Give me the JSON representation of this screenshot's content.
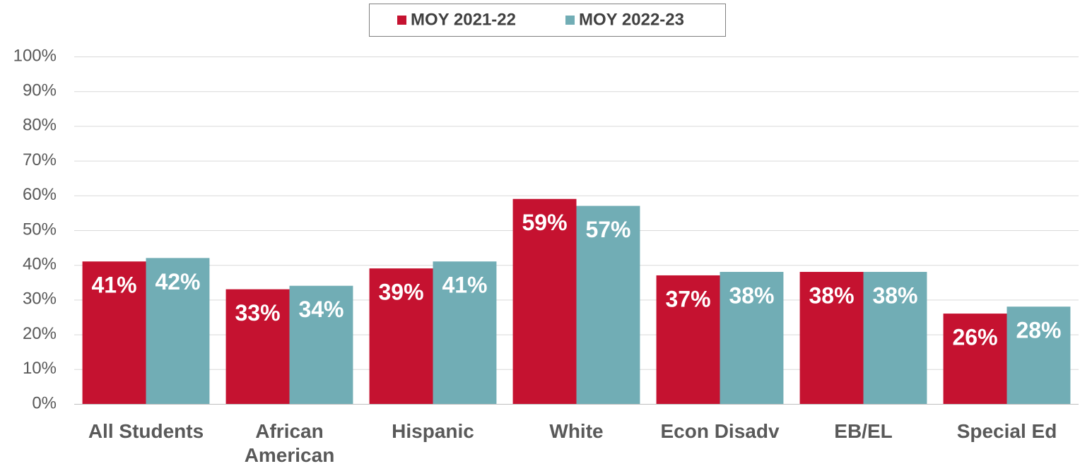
{
  "chart_data": {
    "type": "bar",
    "categories": [
      "All Students",
      "African American",
      "Hispanic",
      "White",
      "Econ Disadv",
      "EB/EL",
      "Special Ed"
    ],
    "series": [
      {
        "name": "MOY 2021-22",
        "color": "#c51230",
        "values": [
          41,
          33,
          39,
          59,
          37,
          38,
          26
        ],
        "value_labels": [
          "41%",
          "33%",
          "39%",
          "59%",
          "37%",
          "38%",
          "26%"
        ]
      },
      {
        "name": "MOY 2022-23",
        "color": "#71adb5",
        "values": [
          42,
          34,
          41,
          57,
          38,
          38,
          28
        ],
        "value_labels": [
          "42%",
          "34%",
          "41%",
          "57%",
          "38%",
          "38%",
          "28%"
        ]
      }
    ],
    "ylim": [
      0,
      100
    ],
    "yticks": [
      {
        "value": 0,
        "label": "0%"
      },
      {
        "value": 10,
        "label": "10%"
      },
      {
        "value": 20,
        "label": "20%"
      },
      {
        "value": 30,
        "label": "30%"
      },
      {
        "value": 40,
        "label": "40%"
      },
      {
        "value": 50,
        "label": "50%"
      },
      {
        "value": 60,
        "label": "60%"
      },
      {
        "value": 70,
        "label": "70%"
      },
      {
        "value": 80,
        "label": "80%"
      },
      {
        "value": 90,
        "label": "90%"
      },
      {
        "value": 100,
        "label": "100%"
      }
    ],
    "grid": true,
    "legend": "top"
  }
}
